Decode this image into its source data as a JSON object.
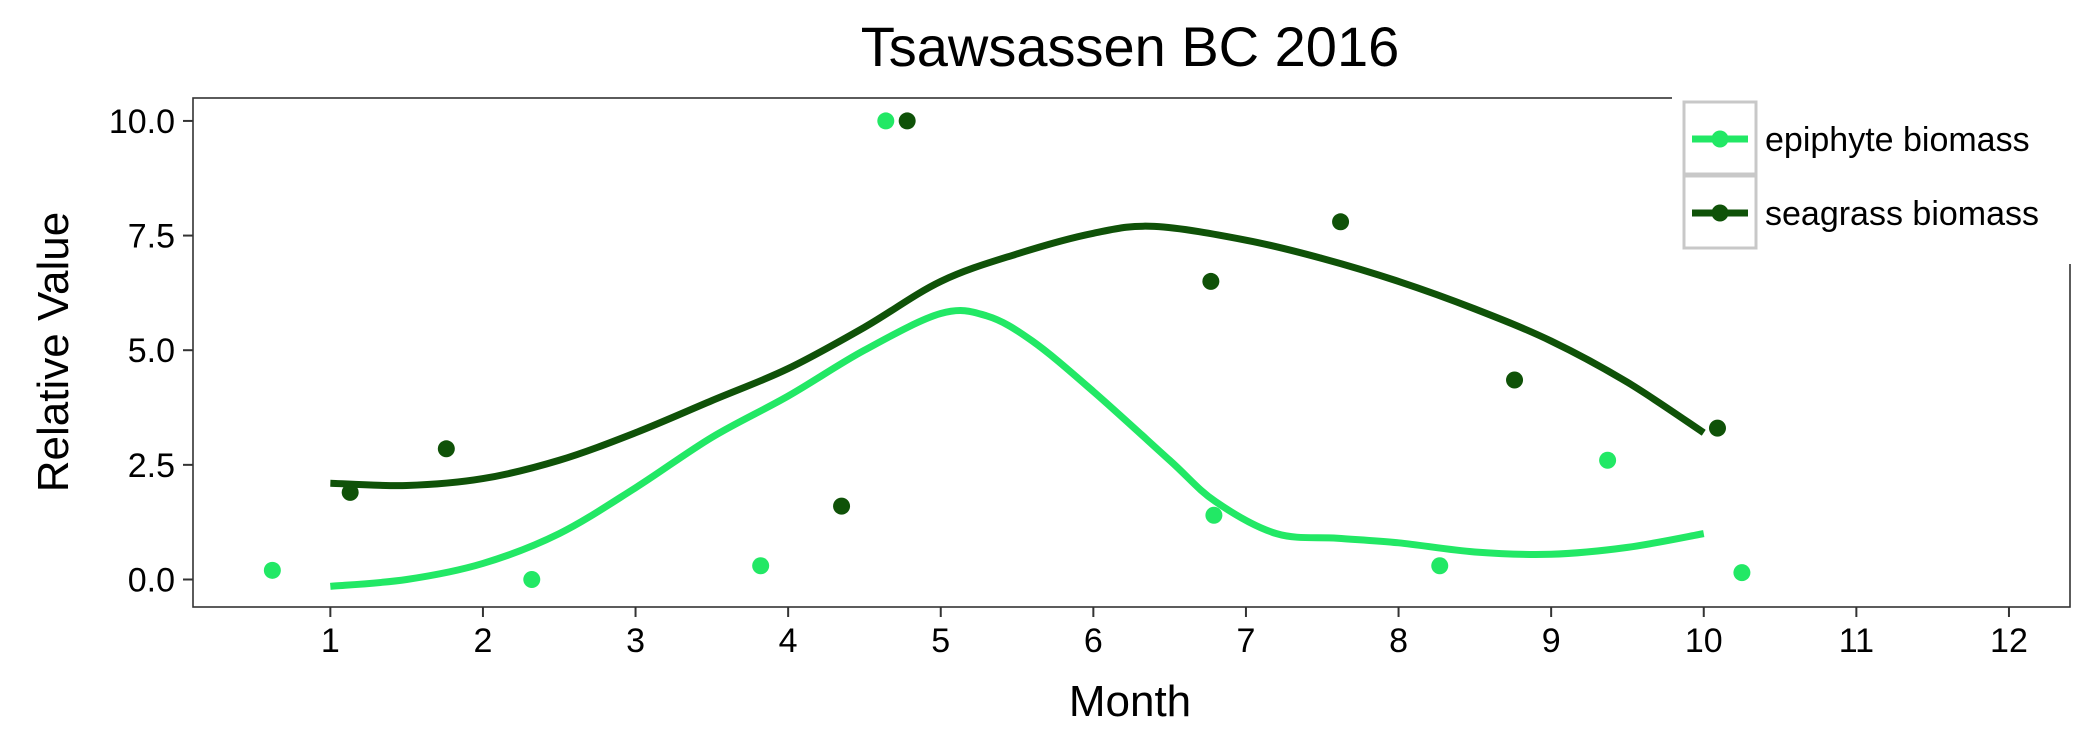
{
  "chart_data": {
    "type": "scatter",
    "title": "Tsawsassen BC 2016",
    "xlabel": "Month",
    "ylabel": "Relative Value",
    "xlim": [
      0.1,
      12.4
    ],
    "ylim": [
      -0.6,
      10.5
    ],
    "x_ticks": [
      "1",
      "2",
      "3",
      "4",
      "5",
      "6",
      "7",
      "8",
      "9",
      "10",
      "11",
      "12"
    ],
    "y_ticks": [
      "0.0",
      "2.5",
      "5.0",
      "7.5",
      "10.0"
    ],
    "grid": false,
    "legend_position": "top-right",
    "series": [
      {
        "name": "epiphyte biomass",
        "color": "#22e865",
        "points": [
          {
            "x": 0.62,
            "y": 0.2
          },
          {
            "x": 2.32,
            "y": 0.0
          },
          {
            "x": 3.82,
            "y": 0.3
          },
          {
            "x": 4.64,
            "y": 10.0
          },
          {
            "x": 6.79,
            "y": 1.4
          },
          {
            "x": 8.27,
            "y": 0.3
          },
          {
            "x": 9.37,
            "y": 2.6
          },
          {
            "x": 10.25,
            "y": 0.15
          }
        ],
        "smooth": [
          {
            "x": 1.0,
            "y": -0.15
          },
          {
            "x": 1.5,
            "y": 0.0
          },
          {
            "x": 2.0,
            "y": 0.35
          },
          {
            "x": 2.5,
            "y": 1.0
          },
          {
            "x": 3.0,
            "y": 2.0
          },
          {
            "x": 3.5,
            "y": 3.1
          },
          {
            "x": 4.0,
            "y": 4.0
          },
          {
            "x": 4.5,
            "y": 5.0
          },
          {
            "x": 5.0,
            "y": 5.8
          },
          {
            "x": 5.3,
            "y": 5.75
          },
          {
            "x": 5.6,
            "y": 5.2
          },
          {
            "x": 6.0,
            "y": 4.1
          },
          {
            "x": 6.5,
            "y": 2.6
          },
          {
            "x": 6.8,
            "y": 1.7
          },
          {
            "x": 7.2,
            "y": 1.0
          },
          {
            "x": 7.6,
            "y": 0.9
          },
          {
            "x": 8.0,
            "y": 0.8
          },
          {
            "x": 8.5,
            "y": 0.6
          },
          {
            "x": 9.0,
            "y": 0.55
          },
          {
            "x": 9.5,
            "y": 0.7
          },
          {
            "x": 10.0,
            "y": 1.0
          }
        ]
      },
      {
        "name": "seagrass biomass",
        "color": "#0f5208",
        "points": [
          {
            "x": 1.13,
            "y": 1.9
          },
          {
            "x": 1.76,
            "y": 2.85
          },
          {
            "x": 4.35,
            "y": 1.6
          },
          {
            "x": 4.78,
            "y": 10.0
          },
          {
            "x": 6.77,
            "y": 6.5
          },
          {
            "x": 7.62,
            "y": 7.8
          },
          {
            "x": 8.76,
            "y": 4.35
          },
          {
            "x": 10.09,
            "y": 3.3
          }
        ],
        "smooth": [
          {
            "x": 1.0,
            "y": 2.1
          },
          {
            "x": 1.5,
            "y": 2.05
          },
          {
            "x": 2.0,
            "y": 2.2
          },
          {
            "x": 2.5,
            "y": 2.6
          },
          {
            "x": 3.0,
            "y": 3.2
          },
          {
            "x": 3.5,
            "y": 3.9
          },
          {
            "x": 4.0,
            "y": 4.6
          },
          {
            "x": 4.5,
            "y": 5.5
          },
          {
            "x": 5.0,
            "y": 6.5
          },
          {
            "x": 5.5,
            "y": 7.1
          },
          {
            "x": 6.0,
            "y": 7.55
          },
          {
            "x": 6.4,
            "y": 7.7
          },
          {
            "x": 7.0,
            "y": 7.4
          },
          {
            "x": 7.5,
            "y": 7.0
          },
          {
            "x": 8.0,
            "y": 6.5
          },
          {
            "x": 8.5,
            "y": 5.9
          },
          {
            "x": 9.0,
            "y": 5.2
          },
          {
            "x": 9.5,
            "y": 4.3
          },
          {
            "x": 10.0,
            "y": 3.2
          }
        ]
      }
    ]
  }
}
